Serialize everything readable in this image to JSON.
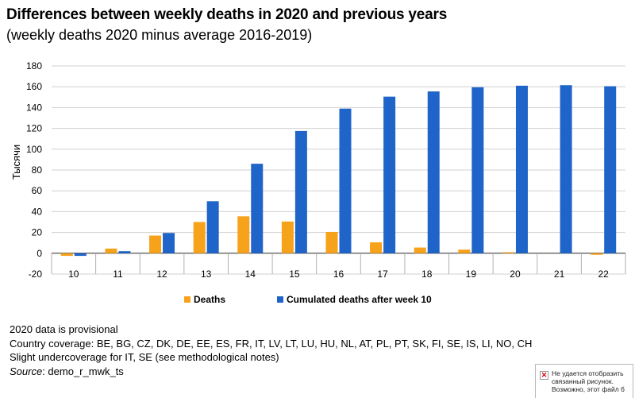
{
  "title": "Differences between weekly deaths in 2020 and previous years",
  "subtitle": "(weekly deaths 2020 minus average 2016-2019)",
  "chart_data": {
    "type": "bar",
    "categories": [
      "10",
      "11",
      "12",
      "13",
      "14",
      "15",
      "16",
      "17",
      "18",
      "19",
      "20",
      "21",
      "22"
    ],
    "series": [
      {
        "name": "Deaths",
        "color": "#f7a21b",
        "values": [
          -2.5,
          4.5,
          17,
          30,
          35.5,
          30.5,
          20.5,
          10.5,
          5.5,
          3.5,
          1,
          0,
          -1.5
        ]
      },
      {
        "name": "Cumulated deaths after week 10",
        "color": "#1f64c8",
        "values": [
          -2.5,
          2,
          19.5,
          50,
          86,
          117.5,
          139,
          150.5,
          155.5,
          159.5,
          161,
          161.5,
          160.5
        ]
      }
    ],
    "ylabel": "Тысячи",
    "ylim": [
      -20,
      180
    ],
    "yticks": [
      -20,
      0,
      20,
      40,
      60,
      80,
      100,
      120,
      140,
      160,
      180
    ],
    "grid": true,
    "legend_position": "bottom"
  },
  "notes": {
    "line1": "2020 data is provisional",
    "line2": "Country coverage: BE, BG, CZ, DK, DE, EE, ES, FR, IT, LV, LT, LU, HU, NL, AT, PL, PT, SK, FI, SE, IS, LI, NO, CH",
    "line3": "Slight undercoverage for IT, SE (see methodological notes)",
    "source_label": "Source",
    "source_value": ": demo_r_mwk_ts"
  },
  "broken_image": {
    "icon": "broken-image-icon",
    "text": "Не удается отобразить связанный рисунок. Возможно, этот файл б"
  }
}
